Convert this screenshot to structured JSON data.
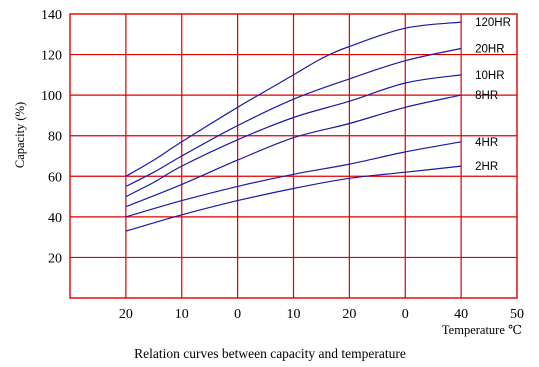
{
  "chart_data": {
    "type": "line",
    "title": "",
    "caption": "Relation curves between capacity and temperature",
    "xlabel": "Temperature ℃",
    "ylabel": "Capacity (%)",
    "x_ticks": [
      "20",
      "10",
      "0",
      "10",
      "20",
      "0",
      "40",
      "50"
    ],
    "y_ticks": [
      20,
      40,
      60,
      80,
      100,
      120,
      140
    ],
    "ylim": [
      0,
      140
    ],
    "grid": true,
    "grid_color": "#e00000",
    "line_color": "#1a1aa6",
    "series": [
      {
        "name": "120HR",
        "points": [
          [
            0,
            60
          ],
          [
            0.5,
            68
          ],
          [
            1,
            77
          ],
          [
            2,
            94
          ],
          [
            3,
            110
          ],
          [
            3.5,
            118
          ],
          [
            4,
            124
          ],
          [
            5,
            133
          ],
          [
            6,
            136
          ]
        ]
      },
      {
        "name": "20HR",
        "points": [
          [
            0,
            55
          ],
          [
            0.5,
            62
          ],
          [
            1,
            70
          ],
          [
            2,
            85
          ],
          [
            3,
            98
          ],
          [
            4,
            108
          ],
          [
            5,
            117
          ],
          [
            6,
            123
          ]
        ]
      },
      {
        "name": "10HR",
        "points": [
          [
            0,
            50
          ],
          [
            0.5,
            57
          ],
          [
            1,
            65
          ],
          [
            2,
            78
          ],
          [
            3,
            89
          ],
          [
            4,
            97
          ],
          [
            5,
            106
          ],
          [
            6,
            110
          ]
        ]
      },
      {
        "name": "8HR",
        "points": [
          [
            0,
            45
          ],
          [
            1,
            56
          ],
          [
            2,
            68
          ],
          [
            3,
            79
          ],
          [
            4,
            86
          ],
          [
            5,
            94
          ],
          [
            6,
            100
          ]
        ]
      },
      {
        "name": "4HR",
        "points": [
          [
            0,
            40
          ],
          [
            1,
            48
          ],
          [
            2,
            55
          ],
          [
            3,
            61
          ],
          [
            4,
            66
          ],
          [
            5,
            72
          ],
          [
            6,
            77
          ]
        ]
      },
      {
        "name": "2HR",
        "points": [
          [
            0,
            33
          ],
          [
            1,
            41
          ],
          [
            2,
            48
          ],
          [
            3,
            54
          ],
          [
            4,
            59
          ],
          [
            5,
            62
          ],
          [
            6,
            65
          ]
        ]
      }
    ]
  }
}
